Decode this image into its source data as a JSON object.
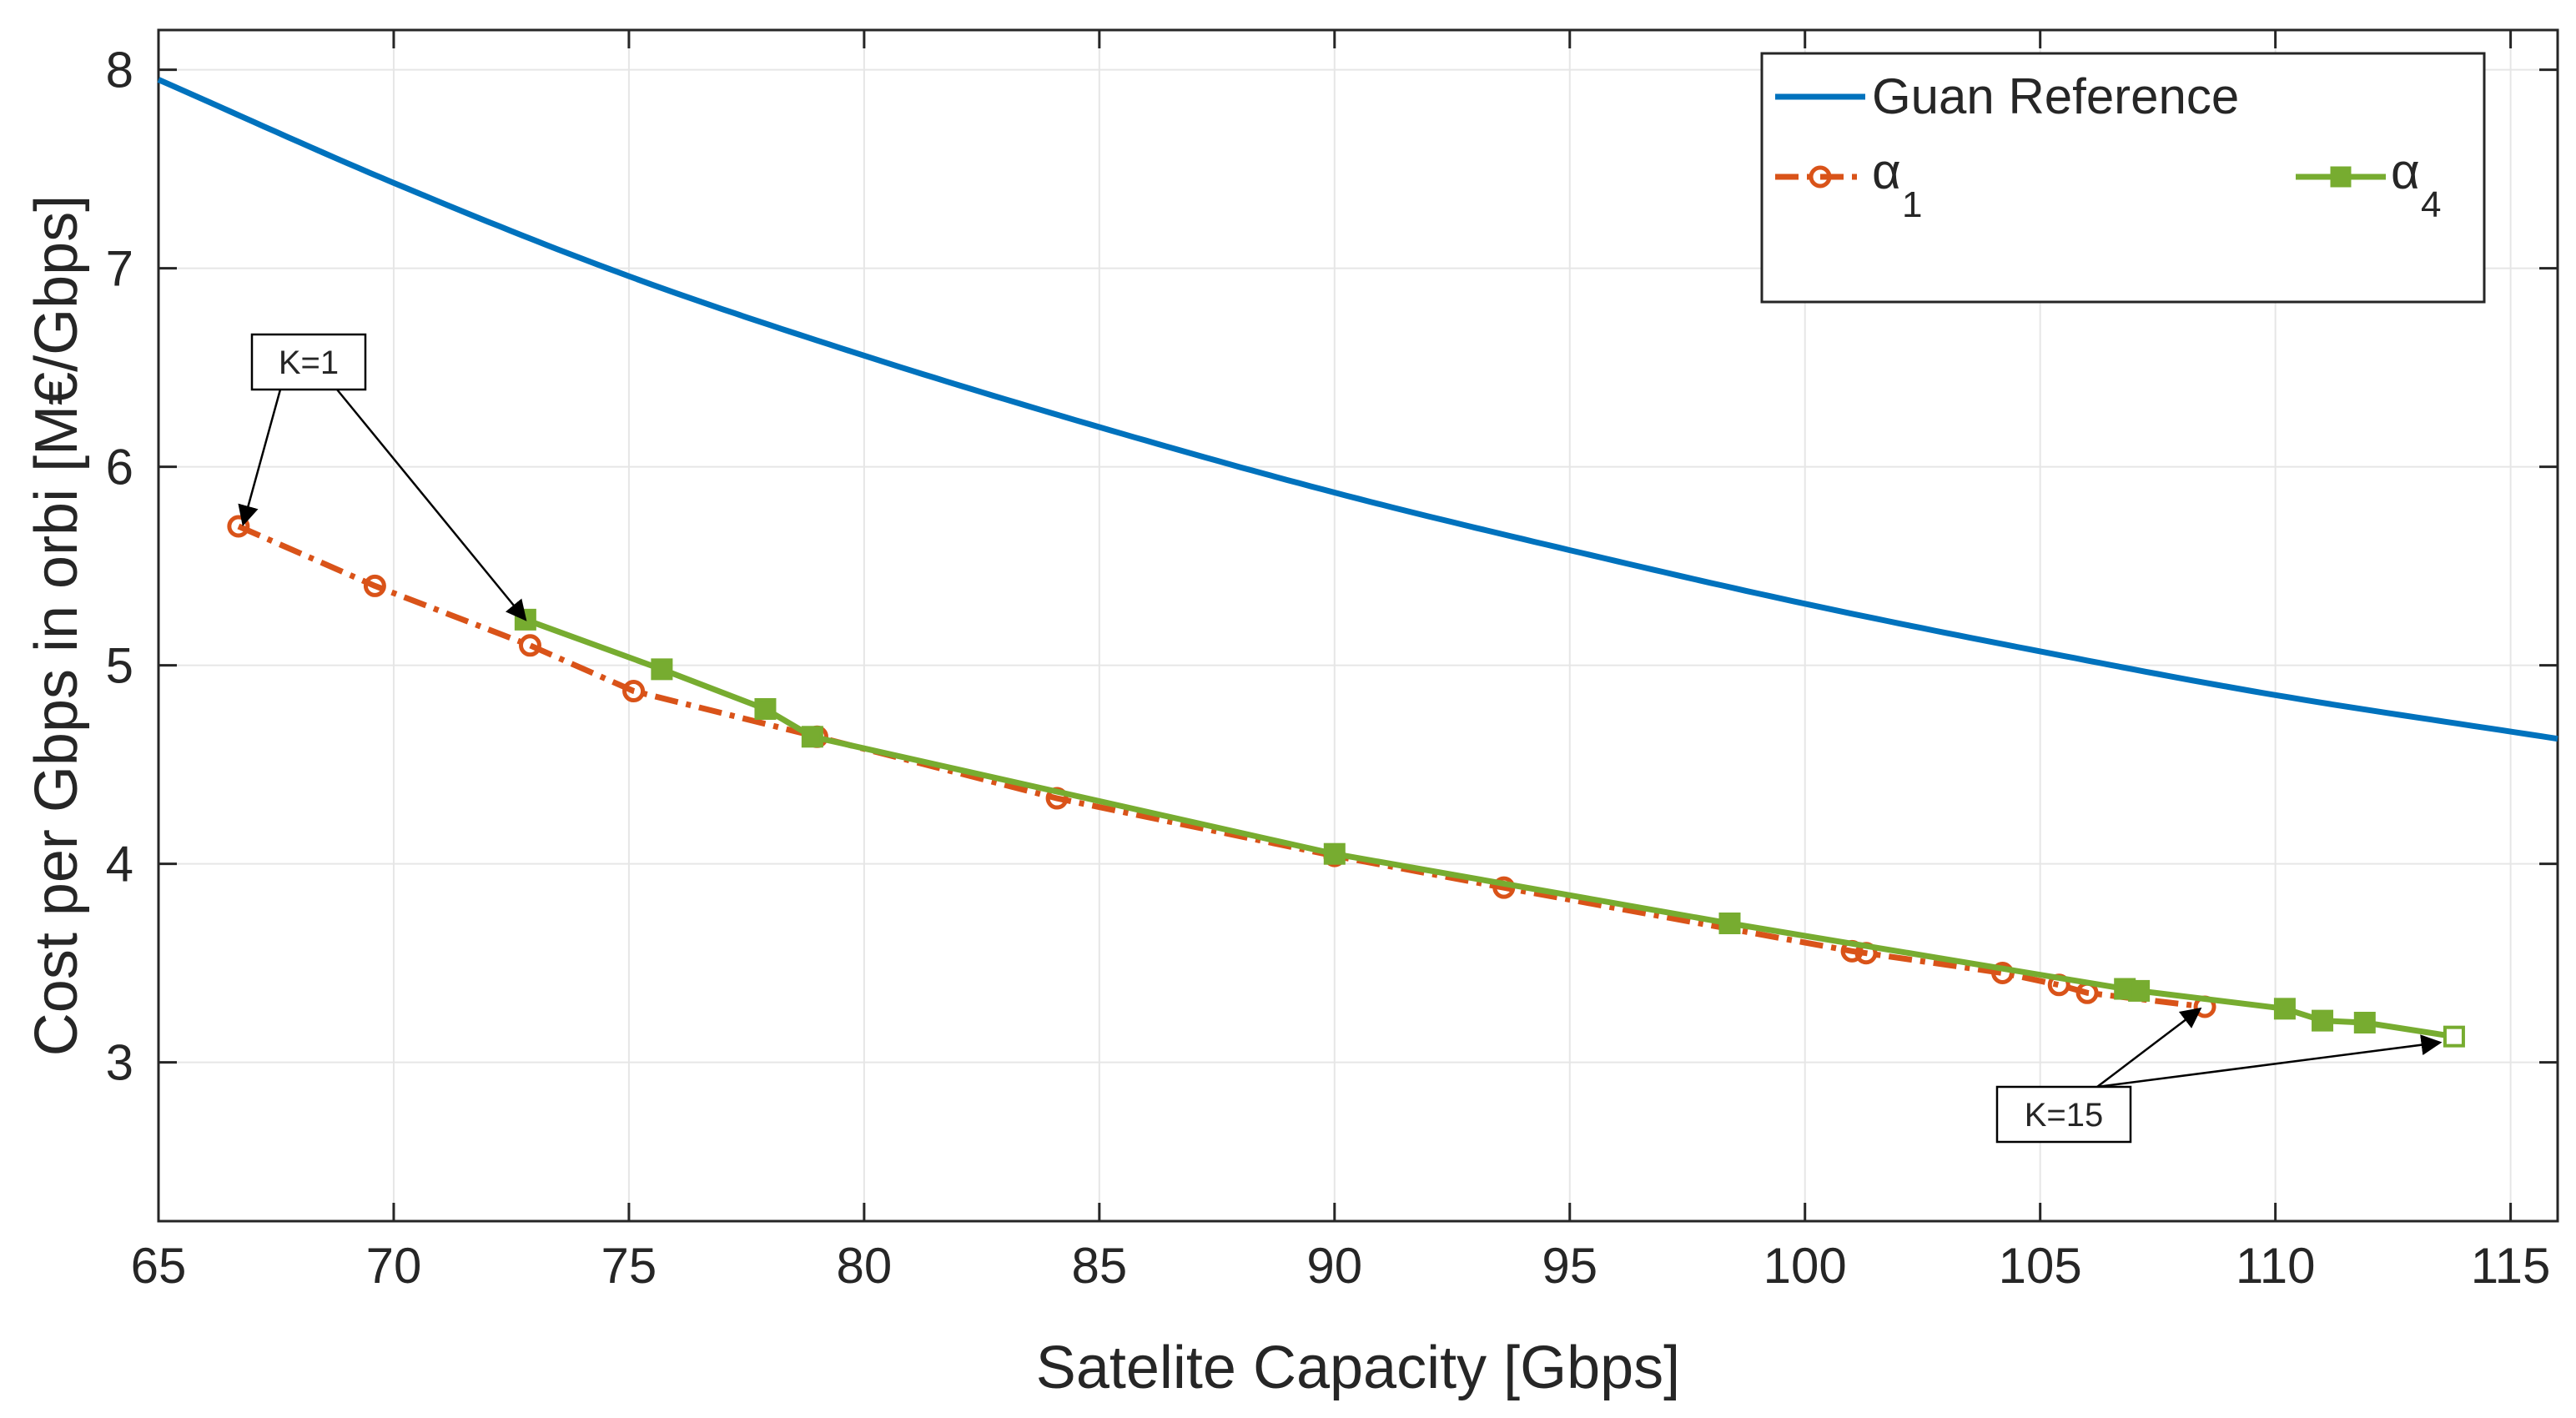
{
  "chart_data": {
    "type": "line",
    "title": "",
    "xlabel": "Satelite Capacity [Gbps]",
    "ylabel": "Cost per Gbps in orbi [M€/Gbps]",
    "xlim": [
      65,
      116
    ],
    "ylim": [
      2.2,
      8.2
    ],
    "xticks": [
      65,
      70,
      75,
      80,
      85,
      90,
      95,
      100,
      105,
      110,
      115
    ],
    "yticks": [
      3,
      4,
      5,
      6,
      7,
      8
    ],
    "grid": true,
    "legend_position": "top-right",
    "series": [
      {
        "name": "Guan Reference",
        "label": "Guan Reference",
        "color": "#0072BD",
        "style": "solid",
        "marker": "none",
        "x": [
          65,
          70,
          75,
          80,
          85,
          90,
          95,
          100,
          105,
          110,
          116
        ],
        "y": [
          7.95,
          7.43,
          6.96,
          6.56,
          6.2,
          5.87,
          5.58,
          5.31,
          5.07,
          4.85,
          4.63
        ]
      },
      {
        "name": "alpha_1",
        "label": "α",
        "label_sub": "1",
        "color": "#D95319",
        "style": "dashdot",
        "marker": "circle",
        "x": [
          66.7,
          69.6,
          72.9,
          75.1,
          79.0,
          84.1,
          90.0,
          93.6,
          101.0,
          101.3,
          104.2,
          105.4,
          106.0,
          108.5
        ],
        "y": [
          5.7,
          5.4,
          5.1,
          4.87,
          4.64,
          4.33,
          4.04,
          3.88,
          3.56,
          3.55,
          3.45,
          3.39,
          3.35,
          3.28
        ]
      },
      {
        "name": "alpha_4",
        "label": "α",
        "label_sub": "4",
        "color": "#77AC30",
        "style": "solid",
        "marker": "square",
        "x": [
          72.8,
          75.7,
          77.9,
          78.9,
          90.0,
          98.4,
          106.8,
          107.1,
          110.2,
          111.0,
          111.9,
          113.8
        ],
        "y": [
          5.23,
          4.98,
          4.78,
          4.64,
          4.05,
          3.7,
          3.37,
          3.36,
          3.27,
          3.21,
          3.2,
          3.13
        ]
      }
    ],
    "annotations": [
      {
        "text": "K=1",
        "targets": [
          [
            66.8,
            5.71
          ],
          [
            72.8,
            5.23
          ]
        ]
      },
      {
        "text": "K=15",
        "targets": [
          [
            108.4,
            3.27
          ],
          [
            113.5,
            3.1
          ]
        ]
      }
    ]
  }
}
